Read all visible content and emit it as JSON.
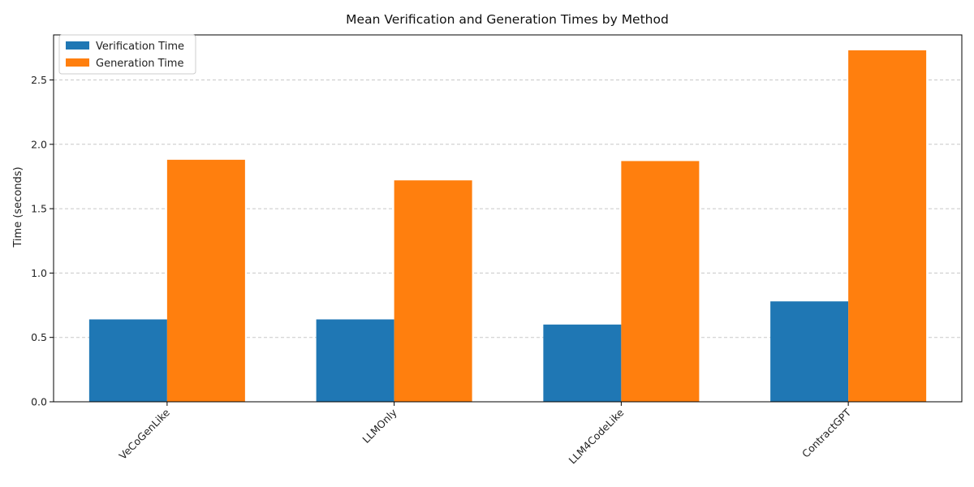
{
  "chart_data": {
    "type": "bar",
    "title": "Mean Verification and Generation Times by Method",
    "xlabel": "",
    "ylabel": "Time (seconds)",
    "categories": [
      "VeCoGenLike",
      "LLMOnly",
      "LLM4CodeLike",
      "ContractGPT"
    ],
    "series": [
      {
        "name": "Verification Time",
        "values": [
          0.64,
          0.64,
          0.6,
          0.78
        ],
        "color": "#1f77b4"
      },
      {
        "name": "Generation Time",
        "values": [
          1.88,
          1.72,
          1.87,
          2.73
        ],
        "color": "#ff7f0e"
      }
    ],
    "ylim": [
      0,
      2.85
    ],
    "yticks": [
      "0.0",
      "0.5",
      "1.0",
      "1.5",
      "2.0",
      "2.5"
    ],
    "grid": "y-dashed",
    "legend_position": "top-left"
  }
}
